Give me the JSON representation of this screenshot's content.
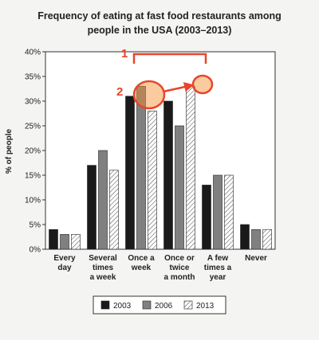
{
  "chart_data": {
    "type": "bar",
    "title": [
      "Frequency of eating at fast food restaurants among",
      "people in the USA (2003–2013)"
    ],
    "y_label": "% of people",
    "categories": [
      "Every\nday",
      "Several\ntimes\na week",
      "Once a\nweek",
      "Once or\ntwice\na month",
      "A few\ntimes a\nyear",
      "Never"
    ],
    "series": [
      {
        "name": "2003",
        "color": "#1a1a1a",
        "values": [
          4,
          17,
          31,
          30,
          13,
          5
        ]
      },
      {
        "name": "2006",
        "color": "#808080",
        "values": [
          3,
          20,
          33,
          25,
          15,
          4
        ]
      },
      {
        "name": "2013",
        "color": "#ffffff",
        "pattern": "hatch",
        "values": [
          3,
          16,
          28,
          33,
          15,
          4
        ]
      }
    ],
    "ylim": [
      0,
      40
    ],
    "yticks": [
      {
        "value": 0,
        "label": "0%"
      },
      {
        "value": 5,
        "label": "5%"
      },
      {
        "value": 10,
        "label": "10%"
      },
      {
        "value": 15,
        "label": "15%"
      },
      {
        "value": 20,
        "label": "20%"
      },
      {
        "value": 25,
        "label": "25%"
      },
      {
        "value": 30,
        "label": "30%"
      },
      {
        "value": 35,
        "label": "35%"
      },
      {
        "value": 40,
        "label": "40%"
      }
    ],
    "grid": false,
    "legend": "bottom",
    "annotations": [
      "1",
      "2"
    ]
  }
}
